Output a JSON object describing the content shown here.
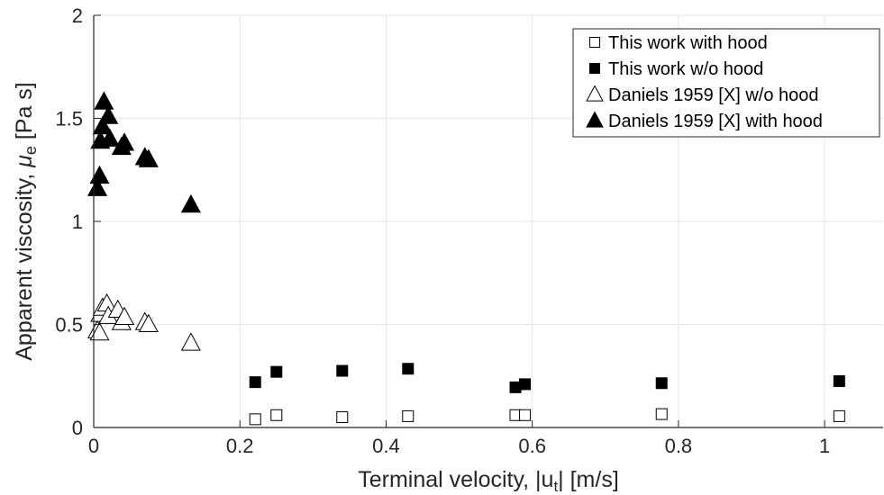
{
  "chart_data": {
    "type": "scatter",
    "xlabel": {
      "main": "Terminal velocity, |u",
      "sub": "t",
      "end": "| [m/s]"
    },
    "ylabel": {
      "main": "Apparent viscosity, ",
      "symbol": "μ",
      "sub": "e",
      "end": " [Pa s]"
    },
    "xlim": [
      0,
      1.08
    ],
    "ylim": [
      0,
      2
    ],
    "xticks": [
      0,
      0.2,
      0.4,
      0.6,
      0.8,
      1
    ],
    "xtick_labels": [
      "0",
      "0.2",
      "0.4",
      "0.6",
      "0.8",
      "1"
    ],
    "yticks": [
      0,
      0.5,
      1,
      1.5,
      2
    ],
    "ytick_labels": [
      "0",
      "0.5",
      "1",
      "1.5",
      "2"
    ],
    "grid": true,
    "legend_position": "top-right",
    "series": [
      {
        "name": "This work with hood",
        "marker": "square-open",
        "points": [
          [
            0.221,
            0.04
          ],
          [
            0.25,
            0.06
          ],
          [
            0.34,
            0.05
          ],
          [
            0.43,
            0.055
          ],
          [
            0.577,
            0.06
          ],
          [
            0.59,
            0.06
          ],
          [
            0.777,
            0.065
          ],
          [
            1.02,
            0.055
          ]
        ]
      },
      {
        "name": "This work w/o hood",
        "marker": "square-filled",
        "points": [
          [
            0.221,
            0.22
          ],
          [
            0.25,
            0.27
          ],
          [
            0.34,
            0.275
          ],
          [
            0.43,
            0.285
          ],
          [
            0.577,
            0.195
          ],
          [
            0.59,
            0.21
          ],
          [
            0.777,
            0.215
          ],
          [
            1.02,
            0.225
          ]
        ]
      },
      {
        "name": "Daniels 1959 [X] w/o hood",
        "marker": "triangle-open",
        "points": [
          [
            0.005,
            0.47
          ],
          [
            0.008,
            0.46
          ],
          [
            0.009,
            0.55
          ],
          [
            0.012,
            0.58
          ],
          [
            0.018,
            0.6
          ],
          [
            0.02,
            0.54
          ],
          [
            0.033,
            0.57
          ],
          [
            0.038,
            0.51
          ],
          [
            0.042,
            0.535
          ],
          [
            0.07,
            0.51
          ],
          [
            0.075,
            0.5
          ],
          [
            0.133,
            0.41
          ]
        ]
      },
      {
        "name": "Daniels 1959 [X] with hood",
        "marker": "triangle-filled",
        "points": [
          [
            0.005,
            1.16
          ],
          [
            0.008,
            1.22
          ],
          [
            0.009,
            1.39
          ],
          [
            0.012,
            1.46
          ],
          [
            0.014,
            1.58
          ],
          [
            0.02,
            1.51
          ],
          [
            0.022,
            1.4
          ],
          [
            0.038,
            1.36
          ],
          [
            0.042,
            1.38
          ],
          [
            0.07,
            1.31
          ],
          [
            0.075,
            1.3
          ],
          [
            0.133,
            1.08
          ]
        ]
      }
    ]
  }
}
